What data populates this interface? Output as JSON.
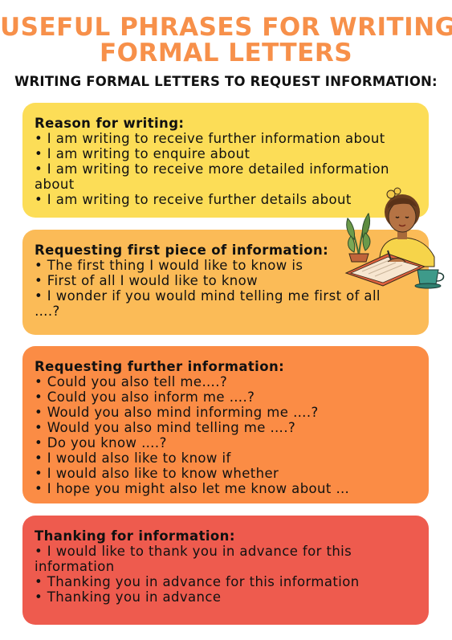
{
  "title": {
    "line1": "USEFUL PHRASES FOR WRITING",
    "line2": "FORMAL LETTERS"
  },
  "subtitle": "WRITING FORMAL LETTERS TO REQUEST INFORMATION:",
  "colors": {
    "title": "#f7904a",
    "card_reason": "#fcdd57",
    "card_first": "#fbbb57",
    "card_further": "#fb8c45",
    "card_thanks": "#ee5b4e"
  },
  "sections": {
    "reason": {
      "heading": "Reason for writing:",
      "items": [
        "I am writing to receive further information about",
        "I am writing to enquire about",
        "I am writing to receive more detailed information about",
        "I am writing to receive further details about"
      ]
    },
    "first": {
      "heading": "Requesting first piece of information:",
      "items": [
        "The first thing I would like to know is",
        "First of all I would like to know",
        "I wonder if you would mind telling me first of all ….?"
      ]
    },
    "further": {
      "heading": "Requesting further information:",
      "items": [
        "Could you also tell me….?",
        "Could you also inform me ….?",
        "Would you also mind informing me ….?",
        "Would you also mind telling me ….?",
        "Do you know ….?",
        "I would also like to know if",
        "I would also like to know whether",
        "I hope you might also let me know about …"
      ]
    },
    "thanks": {
      "heading": "Thanking for information:",
      "items": [
        "I would like to thank you in advance for this information",
        "Thanking you in advance for this information",
        "Thanking you in advance"
      ]
    }
  }
}
